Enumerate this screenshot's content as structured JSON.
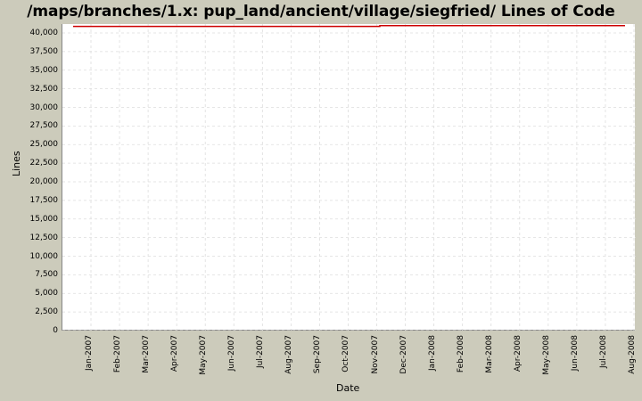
{
  "title": "/maps/branches/1.x: pup_land/ancient/village/siegfried/ Lines of Code",
  "colors": {
    "background": "#cccbbb",
    "plot_background": "#ffffff",
    "series_line": "#cc0000",
    "gridline": "#dddddd"
  },
  "chart_data": {
    "type": "line",
    "title": "/maps/branches/1.x: pup_land/ancient/village/siegfried/ Lines of Code",
    "xlabel": "Date",
    "ylabel": "Lines",
    "ylim": [
      0,
      41200
    ],
    "grid": true,
    "legend": "none",
    "y_ticks": [
      "0",
      "2,500",
      "5,000",
      "7,500",
      "10,000",
      "12,500",
      "15,000",
      "17,500",
      "20,000",
      "22,500",
      "25,000",
      "27,500",
      "30,000",
      "32,500",
      "35,000",
      "37,500",
      "40,000"
    ],
    "x_ticks": [
      "Jan-2007",
      "Feb-2007",
      "Mar-2007",
      "Apr-2007",
      "May-2007",
      "Jun-2007",
      "Jul-2007",
      "Aug-2007",
      "Sep-2007",
      "Oct-2007",
      "Nov-2007",
      "Dec-2007",
      "Jan-2008",
      "Feb-2008",
      "Mar-2008",
      "Apr-2008",
      "May-2008",
      "Jun-2008",
      "Jul-2008",
      "Aug-2008"
    ],
    "series": [
      {
        "name": "Lines of Code",
        "x": [
          "Dec-2006",
          "Nov-2007",
          "Nov-2007",
          "Aug-2008"
        ],
        "values": [
          40950,
          40950,
          41050,
          41050
        ]
      }
    ]
  },
  "axes": {
    "x_label": "Date",
    "y_label": "Lines"
  }
}
